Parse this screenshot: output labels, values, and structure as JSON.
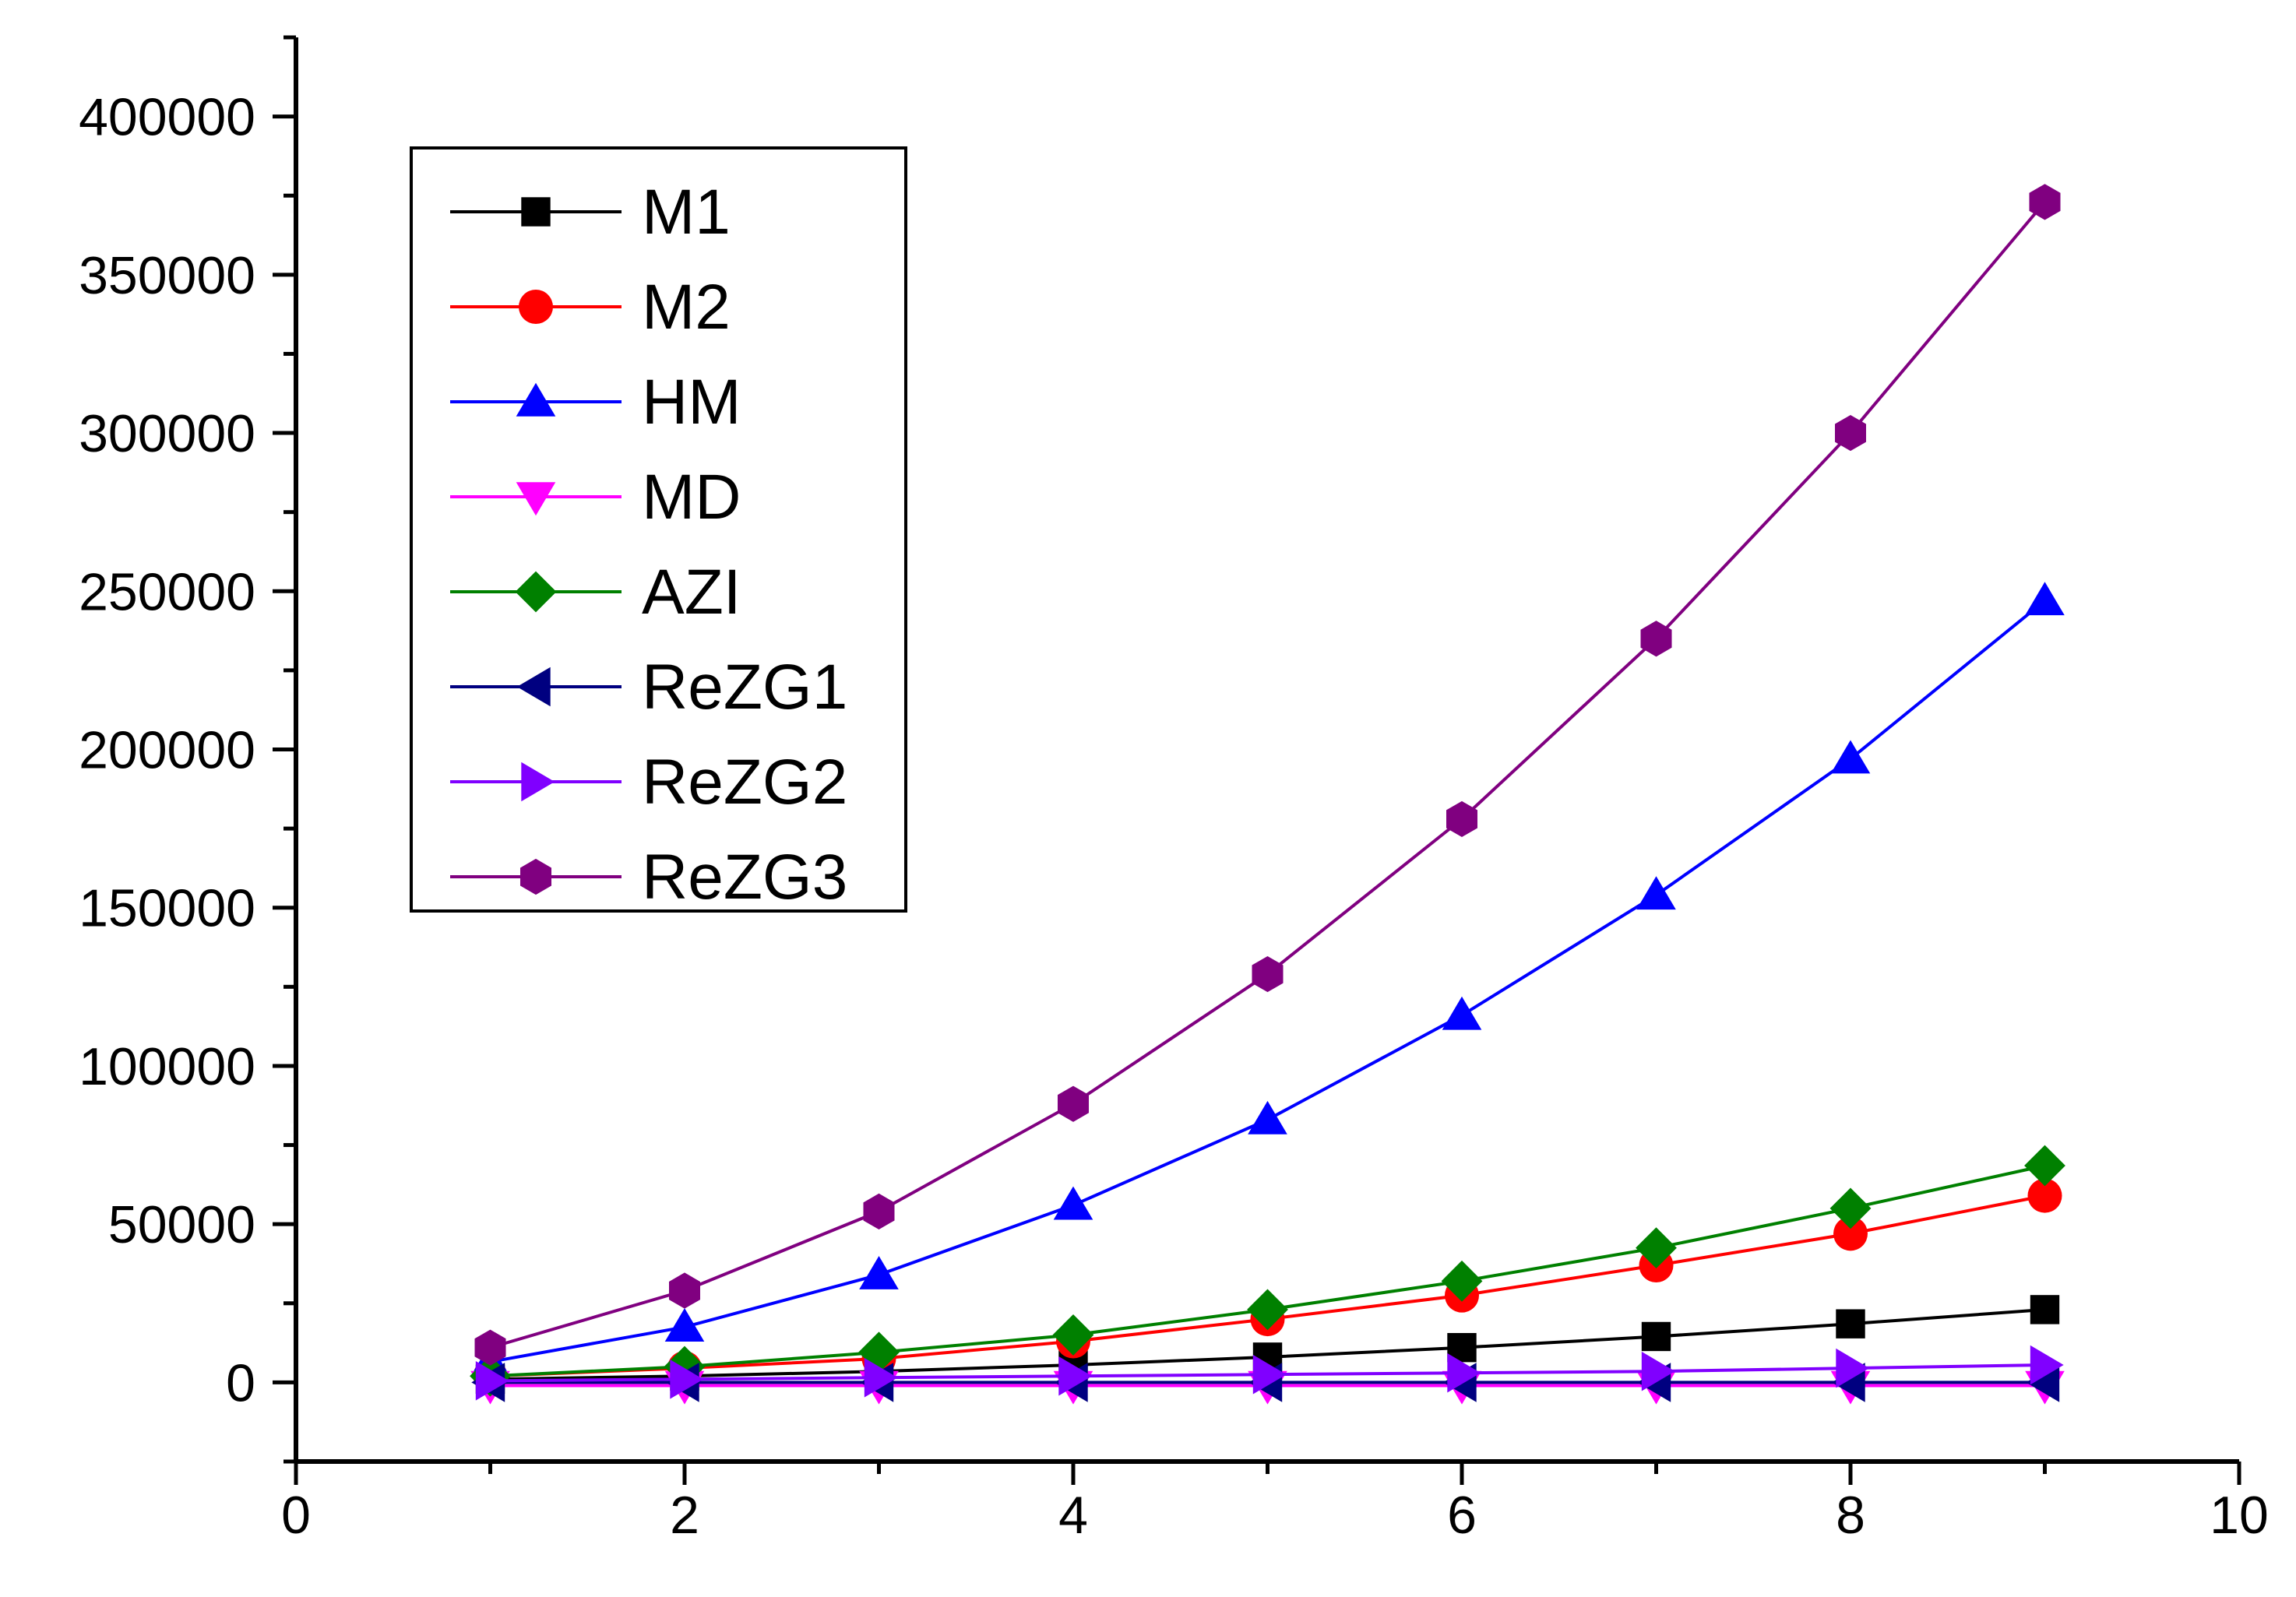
{
  "chart_data": {
    "type": "line",
    "title": "",
    "xlabel": "",
    "ylabel": "",
    "xlim": [
      0,
      10
    ],
    "ylim": [
      -25000,
      425000
    ],
    "x_ticks": [
      0,
      2,
      4,
      6,
      8,
      10
    ],
    "y_ticks": [
      0,
      50000,
      100000,
      150000,
      200000,
      250000,
      300000,
      350000,
      400000
    ],
    "grid": false,
    "legend_position": "top-left",
    "x": [
      1,
      2,
      3,
      4,
      5,
      6,
      7,
      8,
      9
    ],
    "series": [
      {
        "name": "M1",
        "color": "#000000",
        "marker": "square",
        "values": [
          1000,
          2000,
          3500,
          5500,
          8000,
          11000,
          14500,
          18500,
          23000
        ]
      },
      {
        "name": "M2",
        "color": "#ff0000",
        "marker": "circle",
        "values": [
          2000,
          4500,
          7500,
          13000,
          20000,
          27500,
          37000,
          47000,
          59000
        ]
      },
      {
        "name": "HM",
        "color": "#0000ff",
        "marker": "triangle-up",
        "values": [
          6500,
          17500,
          34000,
          56000,
          83000,
          116000,
          154000,
          197000,
          247000
        ]
      },
      {
        "name": "MD",
        "color": "#ff00ff",
        "marker": "triangle-down",
        "values": [
          -1000,
          -1000,
          -1000,
          -1000,
          -1000,
          -1000,
          -1000,
          -1000,
          -1000
        ]
      },
      {
        "name": "AZI",
        "color": "#008000",
        "marker": "diamond",
        "values": [
          2000,
          5000,
          9500,
          15000,
          23000,
          32000,
          42500,
          55000,
          68500
        ]
      },
      {
        "name": "ReZG1",
        "color": "#000080",
        "marker": "triangle-left",
        "values": [
          0,
          0,
          0,
          0,
          0,
          0,
          0,
          0,
          0
        ]
      },
      {
        "name": "ReZG2",
        "color": "#8000ff",
        "marker": "triangle-right",
        "values": [
          500,
          1000,
          1500,
          2000,
          2500,
          3000,
          3500,
          4500,
          5500
        ]
      },
      {
        "name": "ReZG3",
        "color": "#800080",
        "marker": "hexagon",
        "values": [
          11000,
          29000,
          54000,
          88000,
          129000,
          178000,
          235000,
          300000,
          373000
        ]
      }
    ]
  }
}
